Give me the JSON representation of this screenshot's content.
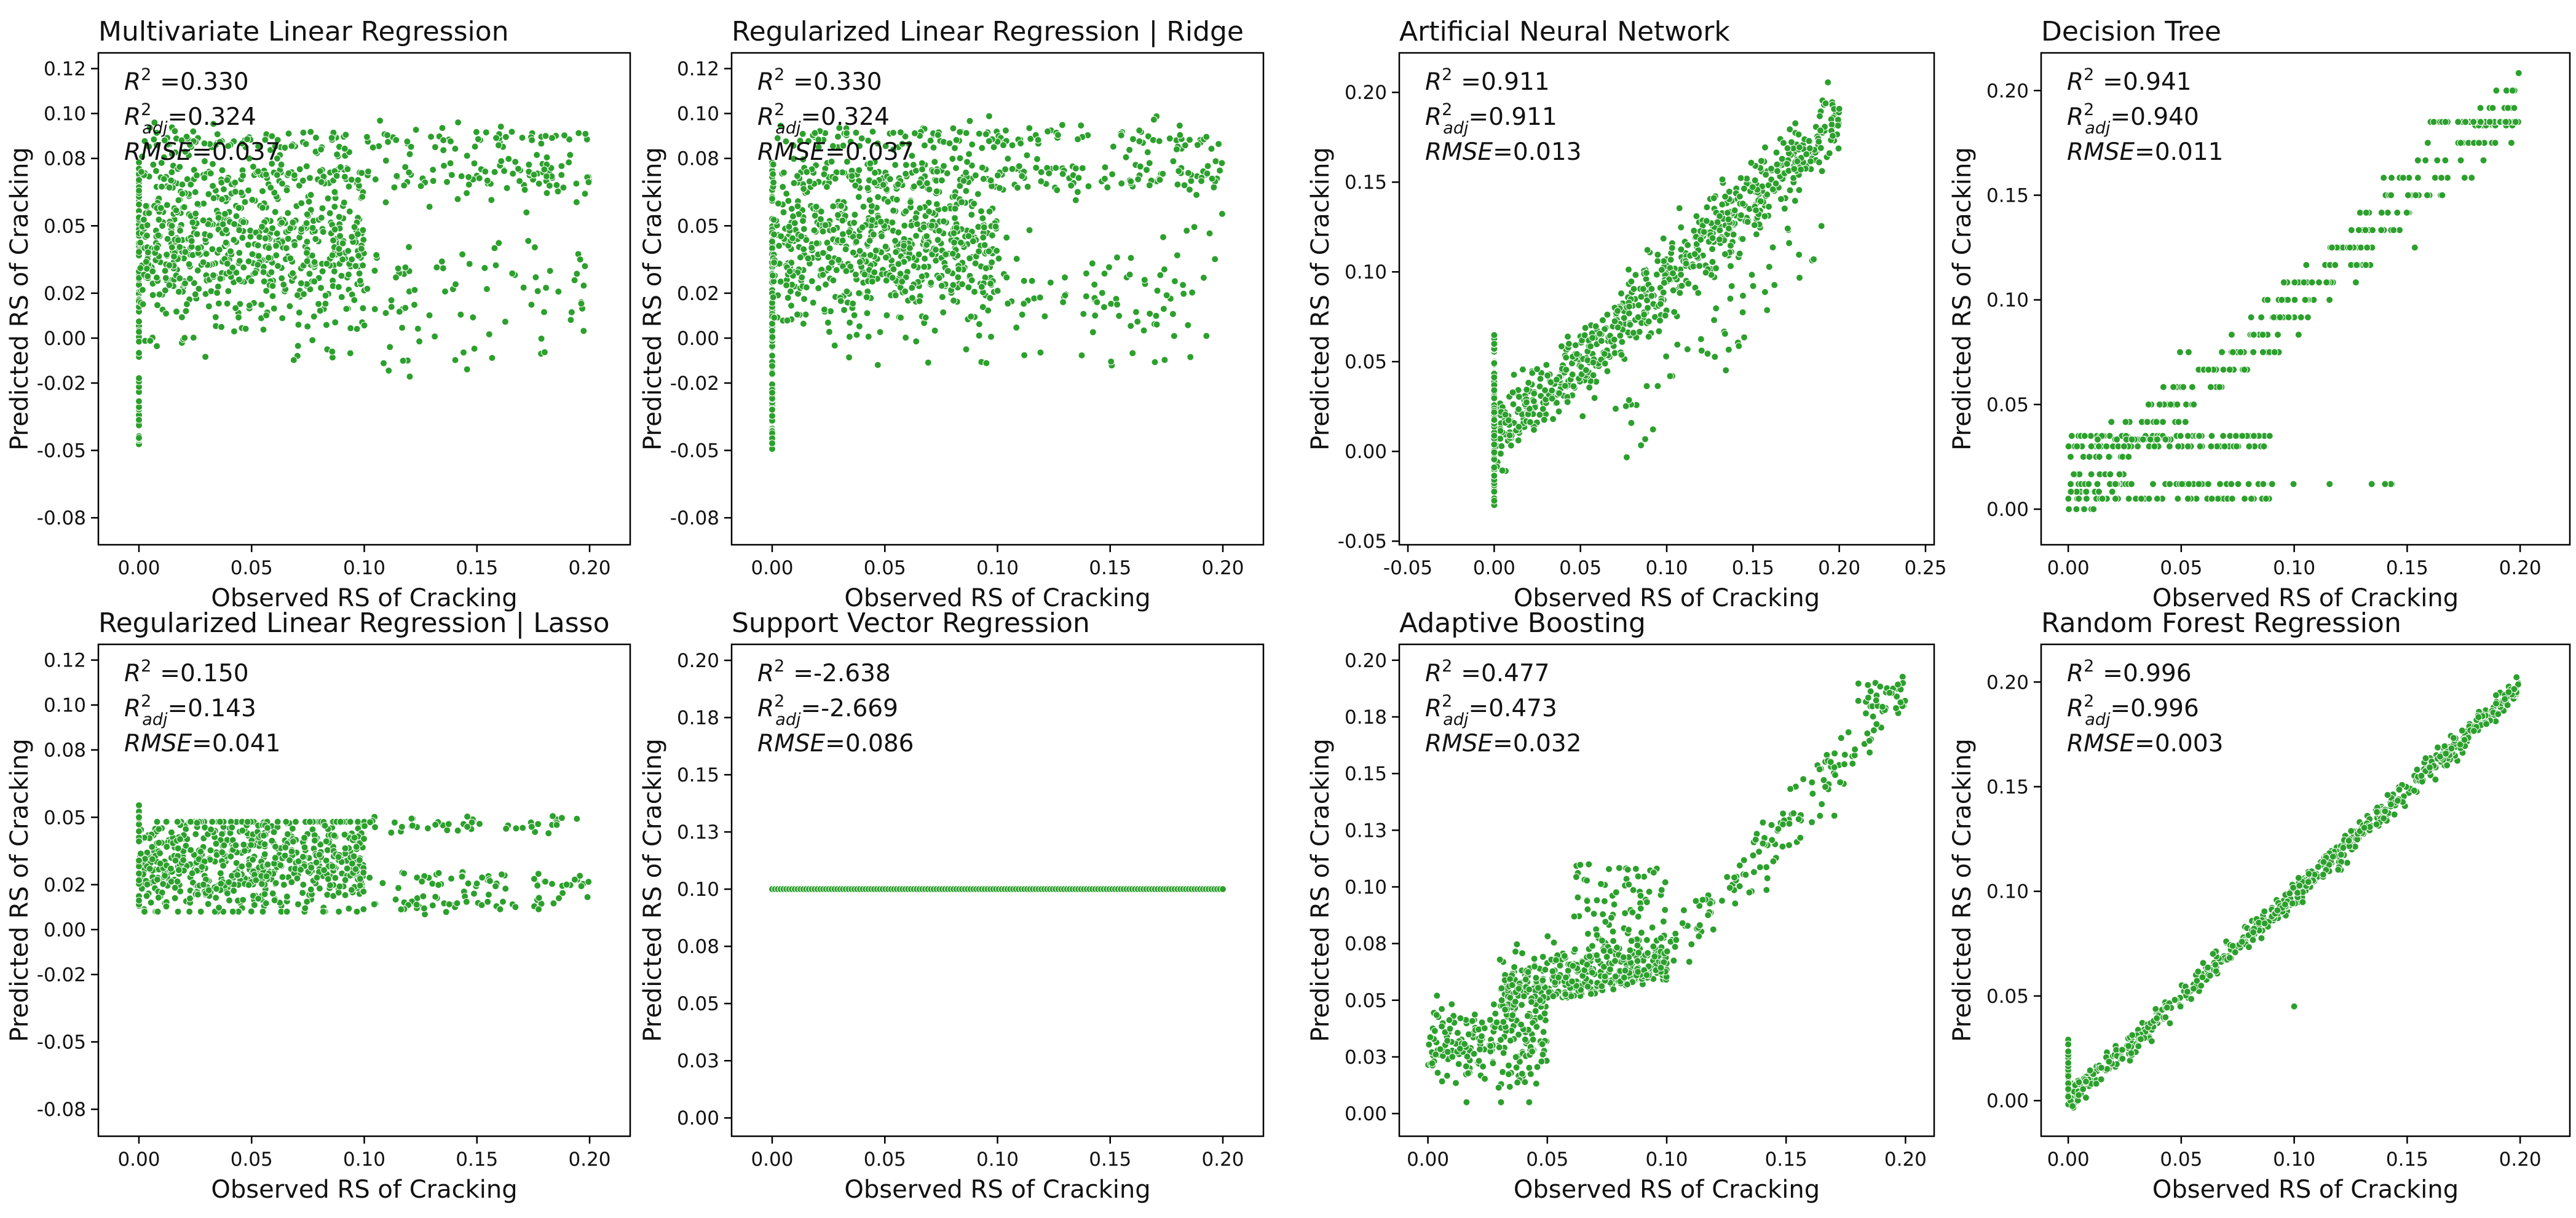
{
  "figure": {
    "point_color": "#2ca02c"
  },
  "chart_data": [
    {
      "type": "scatter",
      "title": "Multivariate Linear Regression",
      "xlabel": "Observed RS of Cracking",
      "ylabel": "Predicted RS of Cracking",
      "xlim": [
        -0.018,
        0.218
      ],
      "ylim": [
        -0.092,
        0.127
      ],
      "xticks": [
        0.0,
        0.05,
        0.1,
        0.15,
        0.2
      ],
      "xtick_labels": [
        "0.00",
        "0.05",
        "0.10",
        "0.15",
        "0.20"
      ],
      "yticks": [
        -0.08,
        -0.05,
        -0.02,
        0.0,
        0.02,
        0.05,
        0.08,
        0.1,
        0.12
      ],
      "ytick_labels": [
        "-0.08",
        "-0.05",
        "-0.02",
        "0.00",
        "0.02",
        "0.05",
        "0.08",
        "0.10",
        "0.12"
      ],
      "stats": {
        "r2_label": "R",
        "r2_sup": "2",
        "r2": "=0.330",
        "adj_label": "R",
        "adj_sup": "2",
        "adj_sub": "adj",
        "adj": "=0.324",
        "rmse_label": "RMSE",
        "rmse": "=0.037"
      },
      "pattern": "mlr"
    },
    {
      "type": "scatter",
      "title": "Regularized Linear Regression | Ridge",
      "xlabel": "Observed RS of Cracking",
      "ylabel": "Predicted RS of Cracking",
      "xlim": [
        -0.018,
        0.218
      ],
      "ylim": [
        -0.092,
        0.127
      ],
      "xticks": [
        0.0,
        0.05,
        0.1,
        0.15,
        0.2
      ],
      "xtick_labels": [
        "0.00",
        "0.05",
        "0.10",
        "0.15",
        "0.20"
      ],
      "yticks": [
        -0.08,
        -0.05,
        -0.02,
        0.0,
        0.02,
        0.05,
        0.08,
        0.1,
        0.12
      ],
      "ytick_labels": [
        "-0.08",
        "-0.05",
        "-0.02",
        "0.00",
        "0.02",
        "0.05",
        "0.08",
        "0.10",
        "0.12"
      ],
      "stats": {
        "r2_label": "R",
        "r2_sup": "2",
        "r2": "=0.330",
        "adj_label": "R",
        "adj_sup": "2",
        "adj_sub": "adj",
        "adj": "=0.324",
        "rmse_label": "RMSE",
        "rmse": "=0.037"
      },
      "pattern": "mlr"
    },
    {
      "type": "scatter",
      "title": "Artificial Neural Network",
      "xlabel": "Observed RS of Cracking",
      "ylabel": "Predicted RS of Cracking",
      "xlim": [
        -0.055,
        0.255
      ],
      "ylim": [
        -0.052,
        0.222
      ],
      "xticks": [
        -0.05,
        0.0,
        0.05,
        0.1,
        0.15,
        0.2,
        0.25
      ],
      "xtick_labels": [
        "-0.05",
        "0.00",
        "0.05",
        "0.10",
        "0.15",
        "0.20",
        "0.25"
      ],
      "yticks": [
        -0.05,
        0.0,
        0.05,
        0.1,
        0.15,
        0.2
      ],
      "ytick_labels": [
        "-0.05",
        "0.00",
        "0.05",
        "0.10",
        "0.15",
        "0.20"
      ],
      "stats": {
        "r2_label": "R",
        "r2_sup": "2",
        "r2": "=0.911",
        "adj_label": "R",
        "adj_sup": "2",
        "adj_sub": "adj",
        "adj": "=0.911",
        "rmse_label": "RMSE",
        "rmse": "=0.013"
      },
      "pattern": "ann"
    },
    {
      "type": "scatter",
      "title": "Decision Tree",
      "xlabel": "Observed RS of Cracking",
      "ylabel": "Predicted RS of Cracking",
      "xlim": [
        -0.012,
        0.222
      ],
      "ylim": [
        -0.017,
        0.218
      ],
      "xticks": [
        0.0,
        0.05,
        0.1,
        0.15,
        0.2
      ],
      "xtick_labels": [
        "0.00",
        "0.05",
        "0.10",
        "0.15",
        "0.20"
      ],
      "yticks": [
        0.0,
        0.05,
        0.1,
        0.15,
        0.2
      ],
      "ytick_labels": [
        "0.00",
        "0.05",
        "0.10",
        "0.15",
        "0.20"
      ],
      "stats": {
        "r2_label": "R",
        "r2_sup": "2",
        "r2": "=0.941",
        "adj_label": "R",
        "adj_sup": "2",
        "adj_sub": "adj",
        "adj": "=0.940",
        "rmse_label": "RMSE",
        "rmse": "=0.011"
      },
      "pattern": "dt"
    },
    {
      "type": "scatter",
      "title": "Regularized Linear Regression | Lasso",
      "xlabel": "Observed RS of Cracking",
      "ylabel": "Predicted RS of Cracking",
      "xlim": [
        -0.018,
        0.218
      ],
      "ylim": [
        -0.092,
        0.127
      ],
      "xticks": [
        0.0,
        0.05,
        0.1,
        0.15,
        0.2
      ],
      "xtick_labels": [
        "0.00",
        "0.05",
        "0.10",
        "0.15",
        "0.20"
      ],
      "yticks": [
        -0.08,
        -0.05,
        -0.02,
        0.0,
        0.02,
        0.05,
        0.08,
        0.1,
        0.12
      ],
      "ytick_labels": [
        "-0.08",
        "-0.05",
        "-0.02",
        "0.00",
        "0.02",
        "0.05",
        "0.08",
        "0.10",
        "0.12"
      ],
      "stats": {
        "r2_label": "R",
        "r2_sup": "2",
        "r2": "=0.150",
        "adj_label": "R",
        "adj_sup": "2",
        "adj_sub": "adj",
        "adj": "=0.143",
        "rmse_label": "RMSE",
        "rmse": "=0.041"
      },
      "pattern": "lasso"
    },
    {
      "type": "scatter",
      "title": "Support Vector Regression",
      "xlabel": "Observed RS of Cracking",
      "ylabel": "Predicted RS of Cracking",
      "xlim": [
        -0.018,
        0.218
      ],
      "ylim": [
        -0.008,
        0.207
      ],
      "xticks": [
        0.0,
        0.05,
        0.1,
        0.15,
        0.2
      ],
      "xtick_labels": [
        "0.00",
        "0.05",
        "0.10",
        "0.15",
        "0.20"
      ],
      "yticks": [
        0.0,
        0.025,
        0.05,
        0.075,
        0.1,
        0.125,
        0.15,
        0.175,
        0.2
      ],
      "ytick_labels": [
        "0.00",
        "0.03",
        "0.05",
        "0.08",
        "0.10",
        "0.13",
        "0.15",
        "0.18",
        "0.20"
      ],
      "stats": {
        "r2_label": "R",
        "r2_sup": "2",
        "r2": "=-2.638",
        "adj_label": "R",
        "adj_sup": "2",
        "adj_sub": "adj",
        "adj": "=-2.669",
        "rmse_label": "RMSE",
        "rmse": "=0.086"
      },
      "pattern": "svr"
    },
    {
      "type": "scatter",
      "title": "Adaptive Boosting",
      "xlabel": "Observed RS of Cracking",
      "ylabel": "Predicted RS of Cracking",
      "xlim": [
        -0.012,
        0.212
      ],
      "ylim": [
        -0.01,
        0.207
      ],
      "xticks": [
        0.0,
        0.05,
        0.1,
        0.15,
        0.2
      ],
      "xtick_labels": [
        "0.00",
        "0.05",
        "0.10",
        "0.15",
        "0.20"
      ],
      "yticks": [
        0.0,
        0.025,
        0.05,
        0.075,
        0.1,
        0.125,
        0.15,
        0.175,
        0.2
      ],
      "ytick_labels": [
        "0.00",
        "0.03",
        "0.05",
        "0.08",
        "0.10",
        "0.13",
        "0.15",
        "0.18",
        "0.20"
      ],
      "stats": {
        "r2_label": "R",
        "r2_sup": "2",
        "r2": "=0.477",
        "adj_label": "R",
        "adj_sup": "2",
        "adj_sub": "adj",
        "adj": "=0.473",
        "rmse_label": "RMSE",
        "rmse": "=0.032"
      },
      "pattern": "ada"
    },
    {
      "type": "scatter",
      "title": "Random Forest Regression",
      "xlabel": "Observed RS of Cracking",
      "ylabel": "Predicted RS of Cracking",
      "xlim": [
        -0.012,
        0.222
      ],
      "ylim": [
        -0.017,
        0.218
      ],
      "xticks": [
        0.0,
        0.05,
        0.1,
        0.15,
        0.2
      ],
      "xtick_labels": [
        "0.00",
        "0.05",
        "0.10",
        "0.15",
        "0.20"
      ],
      "yticks": [
        0.0,
        0.05,
        0.1,
        0.15,
        0.2
      ],
      "ytick_labels": [
        "0.00",
        "0.05",
        "0.10",
        "0.15",
        "0.20"
      ],
      "stats": {
        "r2_label": "R",
        "r2_sup": "2",
        "r2": "=0.996",
        "adj_label": "R",
        "adj_sup": "2",
        "adj_sub": "adj",
        "adj": "=0.996",
        "rmse_label": "RMSE",
        "rmse": "=0.003"
      },
      "pattern": "rf"
    }
  ]
}
